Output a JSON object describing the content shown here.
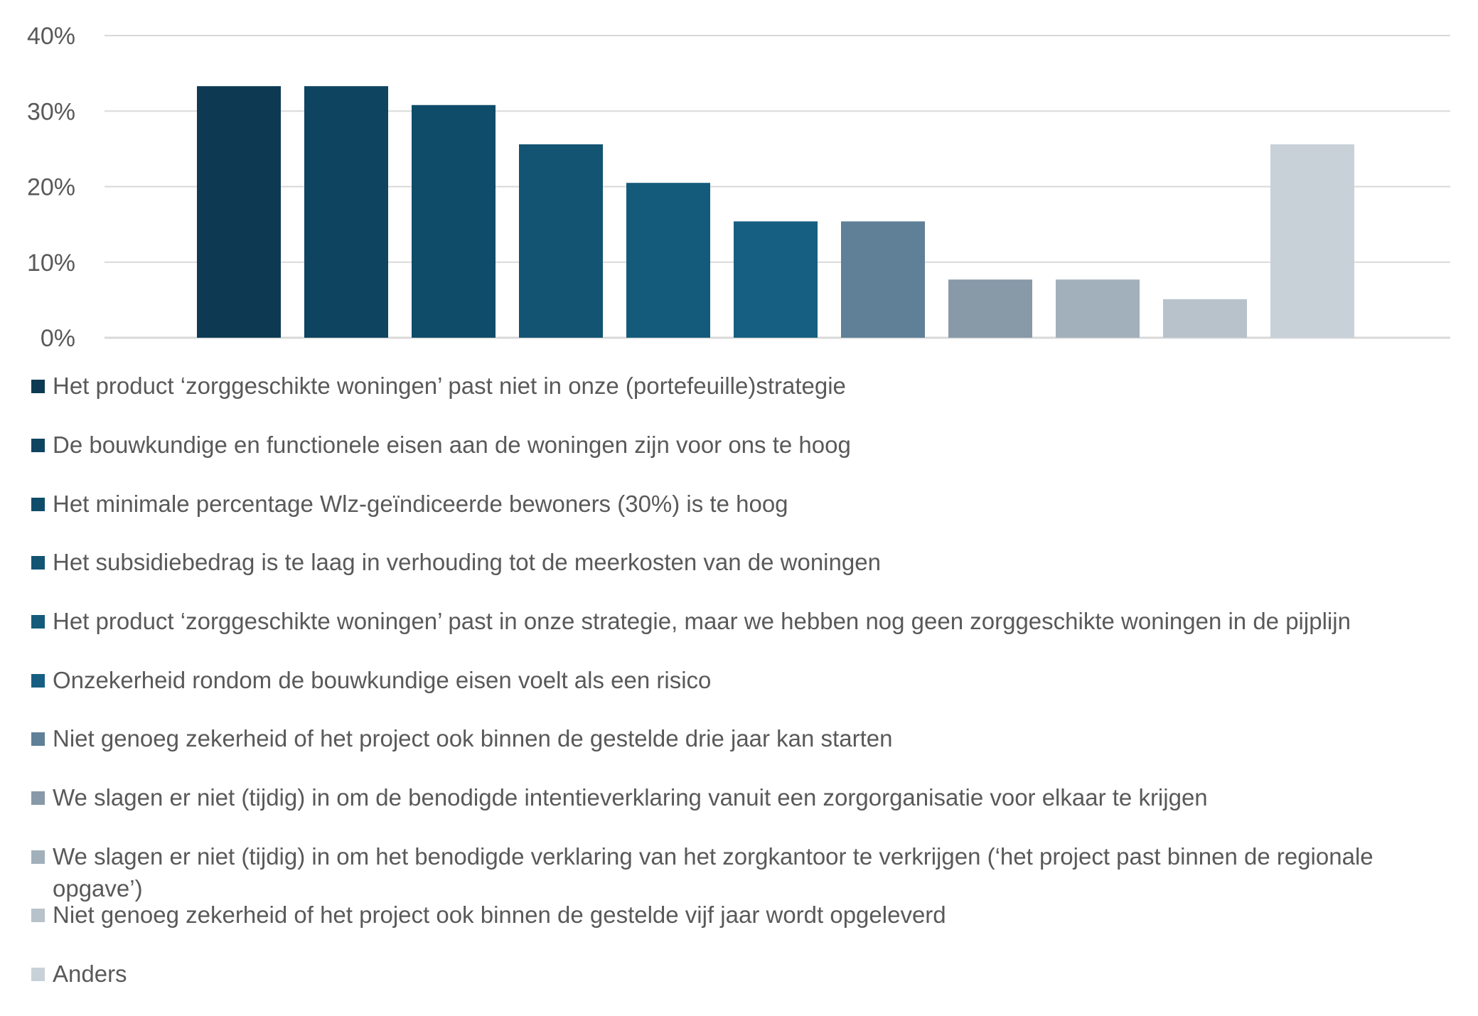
{
  "chart_data": {
    "type": "bar",
    "title": "",
    "xlabel": "",
    "ylabel": "",
    "ylim": [
      0,
      40
    ],
    "yticks": [
      "0%",
      "10%",
      "20%",
      "30%",
      "40%"
    ],
    "grid": true,
    "legend_position": "bottom",
    "categories": [
      "Het product ‘zorggeschikte woningen’ past niet in onze (portefeuille)strategie",
      "De bouwkundige en functionele eisen aan de woningen zijn voor ons te hoog",
      "Het minimale percentage Wlz-geïndiceerde bewoners (30%) is te hoog",
      "Het subsidiebedrag is te laag in verhouding tot de meerkosten van de woningen",
      "Het product ‘zorggeschikte woningen’ past in onze strategie, maar we hebben nog  geen zorggeschikte woningen in de pijplijn",
      "Onzekerheid rondom de bouwkundige eisen voelt als een risico",
      "Niet genoeg zekerheid of het project ook binnen de gestelde drie jaar kan starten",
      "We slagen er niet (tijdig) in om de benodigde intentieverklaring vanuit een zorgorganisatie voor elkaar te krijgen",
      "We slagen er niet (tijdig) in om het benodigde verklaring van het zorgkantoor te verkrijgen (‘het project past binnen de regionale opgave’)",
      "Niet genoeg zekerheid of het project ook binnen de gestelde vijf jaar wordt opgeleverd",
      "Anders"
    ],
    "values": [
      33.3,
      33.3,
      30.8,
      25.6,
      20.5,
      15.4,
      15.4,
      7.7,
      7.7,
      5.1,
      25.6
    ],
    "colors": [
      "#0d3a52",
      "#0e4460",
      "#0f4c69",
      "#125472",
      "#145b7b",
      "#175f82",
      "#5f8097",
      "#8899a8",
      "#a2b0bb",
      "#b8c2ca",
      "#c9d1d8"
    ],
    "gridline_color": "#d9d9d9"
  }
}
